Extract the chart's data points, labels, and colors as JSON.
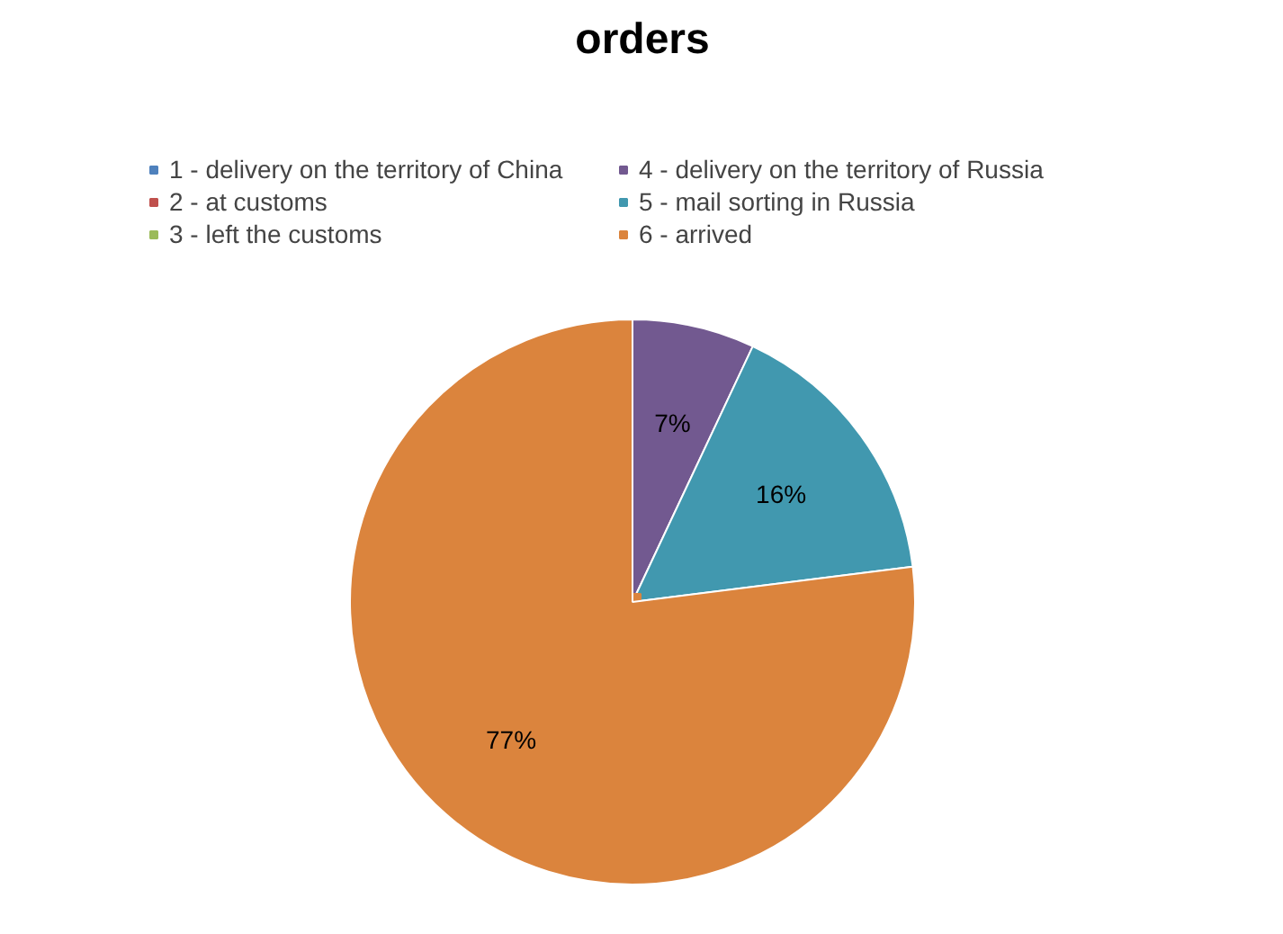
{
  "chart_data": {
    "type": "pie",
    "title": "orders",
    "categories": [
      "1 - delivery on the territory of China",
      "2 - at customs",
      "3 - left the customs",
      "4 - delivery on the territory of Russia",
      "5 - mail sorting in Russia",
      "6 - arrived"
    ],
    "values": [
      0,
      0,
      0,
      7,
      16,
      77
    ],
    "colors": [
      "#4f81bd",
      "#c0504d",
      "#9bbb59",
      "#725990",
      "#4198af",
      "#db843d"
    ],
    "value_labels": [
      null,
      null,
      null,
      "7%",
      "16%",
      "77%"
    ],
    "legend": "top"
  }
}
